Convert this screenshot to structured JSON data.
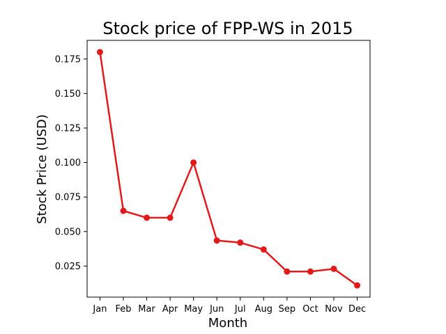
{
  "chart_data": {
    "type": "line",
    "title": "Stock price of FPP-WS in 2015",
    "xlabel": "Month",
    "ylabel": "Stock Price (USD)",
    "categories": [
      "Jan",
      "Feb",
      "Mar",
      "Apr",
      "May",
      "Jun",
      "Jul",
      "Aug",
      "Sep",
      "Oct",
      "Nov",
      "Dec"
    ],
    "values": [
      0.18,
      0.065,
      0.06,
      0.06,
      0.1,
      0.0435,
      0.042,
      0.037,
      0.021,
      0.021,
      0.023,
      0.011
    ],
    "ylim": [
      0.0025,
      0.1885
    ],
    "yticks": [
      0.025,
      0.05,
      0.075,
      0.1,
      0.125,
      0.15,
      0.175
    ],
    "ytick_labels": [
      "0.025",
      "0.050",
      "0.075",
      "0.100",
      "0.125",
      "0.150",
      "0.175"
    ],
    "grid": false,
    "marker": "circle",
    "line_color": "#e31a1c"
  }
}
